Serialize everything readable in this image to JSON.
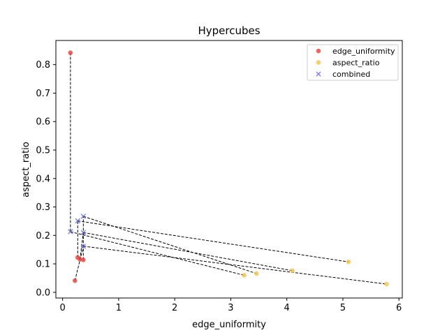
{
  "chart_data": {
    "type": "scatter",
    "title": "Hypercubes",
    "xlabel": "edge_uniformity",
    "ylabel": "aspect_ratio",
    "xlim": [
      -0.12,
      6.06
    ],
    "ylim": [
      -0.02,
      0.885
    ],
    "xticks": [
      0,
      1,
      2,
      3,
      4,
      5,
      6
    ],
    "yticks": [
      0.0,
      0.1,
      0.2,
      0.3,
      0.4,
      0.5,
      0.6,
      0.7,
      0.8
    ],
    "grid": false,
    "legend_position": "top-right",
    "series": [
      {
        "name": "edge_uniformity",
        "marker": "circle",
        "color": "#e8403b",
        "points": [
          [
            0.14,
            0.842
          ],
          [
            0.22,
            0.041
          ],
          [
            0.27,
            0.122
          ],
          [
            0.31,
            0.116
          ],
          [
            0.37,
            0.114
          ]
        ]
      },
      {
        "name": "aspect_ratio",
        "marker": "circle",
        "color": "#f6c146",
        "points": [
          [
            3.24,
            0.06
          ],
          [
            3.46,
            0.066
          ],
          [
            4.1,
            0.076
          ],
          [
            5.1,
            0.107
          ],
          [
            5.78,
            0.029
          ]
        ]
      },
      {
        "name": "combined",
        "marker": "x",
        "color": "#5a5fe0",
        "points": [
          [
            0.14,
            0.213
          ],
          [
            0.27,
            0.251
          ],
          [
            0.37,
            0.267
          ],
          [
            0.37,
            0.162
          ],
          [
            0.37,
            0.21
          ]
        ]
      }
    ],
    "connectors": [
      [
        [
          0.14,
          0.842
        ],
        [
          0.14,
          0.213
        ]
      ],
      [
        [
          0.22,
          0.041
        ],
        [
          0.37,
          0.162
        ]
      ],
      [
        [
          0.27,
          0.122
        ],
        [
          0.27,
          0.251
        ]
      ],
      [
        [
          0.31,
          0.116
        ],
        [
          0.37,
          0.21
        ]
      ],
      [
        [
          0.37,
          0.114
        ],
        [
          0.37,
          0.267
        ]
      ],
      [
        [
          0.14,
          0.213
        ],
        [
          3.24,
          0.06
        ]
      ],
      [
        [
          0.37,
          0.162
        ],
        [
          5.78,
          0.029
        ]
      ],
      [
        [
          0.27,
          0.251
        ],
        [
          5.1,
          0.107
        ]
      ],
      [
        [
          0.37,
          0.21
        ],
        [
          4.1,
          0.076
        ]
      ],
      [
        [
          0.37,
          0.267
        ],
        [
          3.46,
          0.066
        ]
      ]
    ]
  }
}
